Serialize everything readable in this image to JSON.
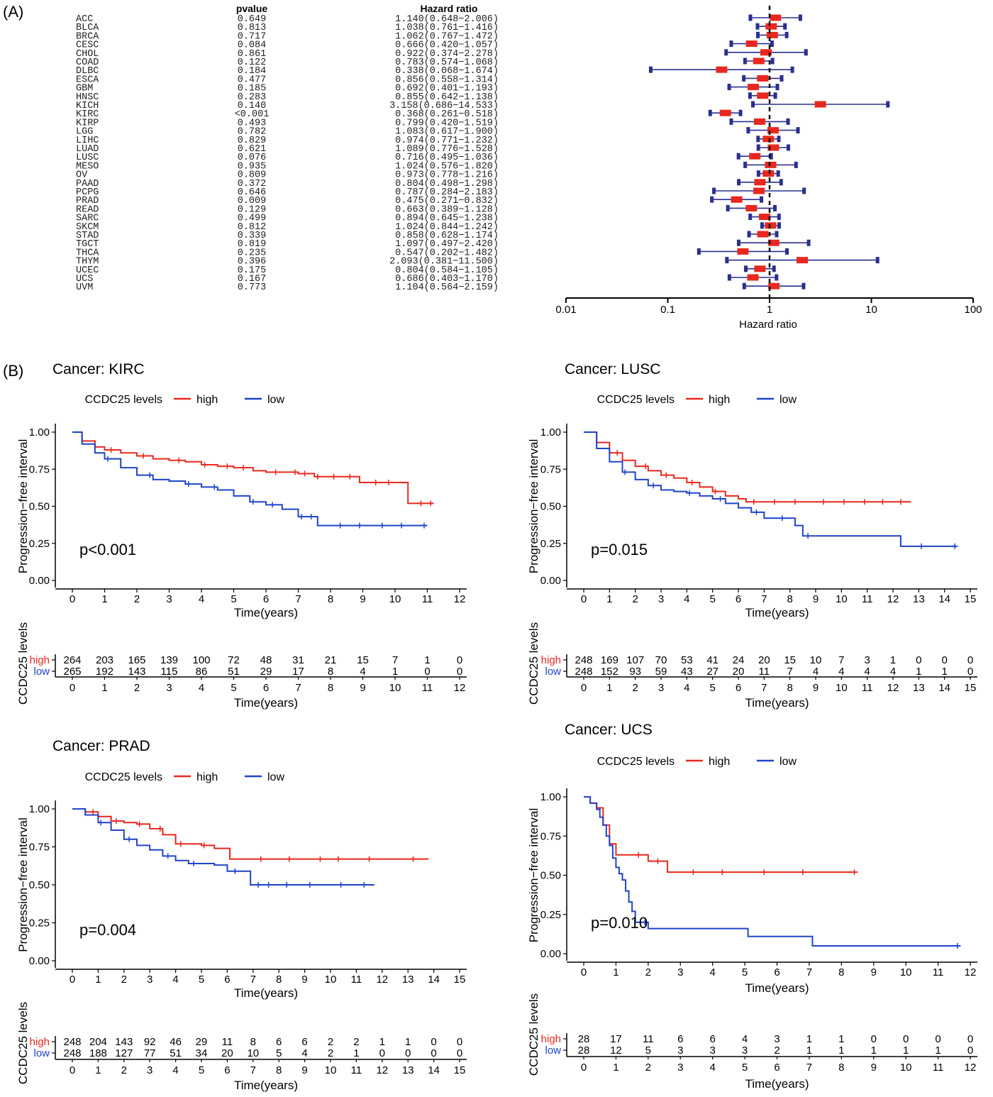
{
  "panel_labels": {
    "a": "(A)",
    "b": "(B)"
  },
  "forest": {
    "header_pvalue": "pvalue",
    "header_hr": "Hazard ratio",
    "xlabel": "Hazard ratio",
    "ticks": [
      "0.01",
      "0.1",
      "1",
      "10",
      "100"
    ],
    "rows": [
      {
        "name": "ACC",
        "p": "0.649",
        "hr_text": "1.140(0.648−2.006)",
        "hr": 1.14,
        "lo": 0.648,
        "hi": 2.006
      },
      {
        "name": "BLCA",
        "p": "0.813",
        "hr_text": "1.038(0.761−1.416)",
        "hr": 1.038,
        "lo": 0.761,
        "hi": 1.416
      },
      {
        "name": "BRCA",
        "p": "0.717",
        "hr_text": "1.062(0.767−1.472)",
        "hr": 1.062,
        "lo": 0.767,
        "hi": 1.472
      },
      {
        "name": "CESC",
        "p": "0.084",
        "hr_text": "0.666(0.420−1.057)",
        "hr": 0.666,
        "lo": 0.42,
        "hi": 1.057
      },
      {
        "name": "CHOL",
        "p": "0.861",
        "hr_text": "0.922(0.374−2.278)",
        "hr": 0.922,
        "lo": 0.374,
        "hi": 2.278
      },
      {
        "name": "COAD",
        "p": "0.122",
        "hr_text": "0.783(0.574−1.068)",
        "hr": 0.783,
        "lo": 0.574,
        "hi": 1.068
      },
      {
        "name": "DLBC",
        "p": "0.184",
        "hr_text": "0.338(0.068−1.674)",
        "hr": 0.338,
        "lo": 0.068,
        "hi": 1.674
      },
      {
        "name": "ESCA",
        "p": "0.477",
        "hr_text": "0.856(0.558−1.314)",
        "hr": 0.856,
        "lo": 0.558,
        "hi": 1.314
      },
      {
        "name": "GBM",
        "p": "0.185",
        "hr_text": "0.692(0.401−1.193)",
        "hr": 0.692,
        "lo": 0.401,
        "hi": 1.193
      },
      {
        "name": "HNSC",
        "p": "0.283",
        "hr_text": "0.855(0.642−1.138)",
        "hr": 0.855,
        "lo": 0.642,
        "hi": 1.138
      },
      {
        "name": "KICH",
        "p": "0.140",
        "hr_text": "3.158(0.686−14.533)",
        "hr": 3.158,
        "lo": 0.686,
        "hi": 14.533
      },
      {
        "name": "KIRC",
        "p": "<0.001",
        "hr_text": "0.368(0.261−0.518)",
        "hr": 0.368,
        "lo": 0.261,
        "hi": 0.518
      },
      {
        "name": "KIRP",
        "p": "0.493",
        "hr_text": "0.799(0.420−1.519)",
        "hr": 0.799,
        "lo": 0.42,
        "hi": 1.519
      },
      {
        "name": "LGG",
        "p": "0.782",
        "hr_text": "1.083(0.617−1.900)",
        "hr": 1.083,
        "lo": 0.617,
        "hi": 1.9
      },
      {
        "name": "LIHC",
        "p": "0.829",
        "hr_text": "0.974(0.771−1.232)",
        "hr": 0.974,
        "lo": 0.771,
        "hi": 1.232
      },
      {
        "name": "LUAD",
        "p": "0.621",
        "hr_text": "1.089(0.776−1.528)",
        "hr": 1.089,
        "lo": 0.776,
        "hi": 1.528
      },
      {
        "name": "LUSC",
        "p": "0.076",
        "hr_text": "0.716(0.495−1.036)",
        "hr": 0.716,
        "lo": 0.495,
        "hi": 1.036
      },
      {
        "name": "MESO",
        "p": "0.935",
        "hr_text": "1.024(0.576−1.820)",
        "hr": 1.024,
        "lo": 0.576,
        "hi": 1.82
      },
      {
        "name": "OV",
        "p": "0.809",
        "hr_text": "0.973(0.778−1.216)",
        "hr": 0.973,
        "lo": 0.778,
        "hi": 1.216
      },
      {
        "name": "PAAD",
        "p": "0.372",
        "hr_text": "0.804(0.498−1.298)",
        "hr": 0.804,
        "lo": 0.498,
        "hi": 1.298
      },
      {
        "name": "PCPG",
        "p": "0.646",
        "hr_text": "0.787(0.284−2.183)",
        "hr": 0.787,
        "lo": 0.284,
        "hi": 2.183
      },
      {
        "name": "PRAD",
        "p": "0.009",
        "hr_text": "0.475(0.271−0.832)",
        "hr": 0.475,
        "lo": 0.271,
        "hi": 0.832
      },
      {
        "name": "READ",
        "p": "0.129",
        "hr_text": "0.663(0.389−1.128)",
        "hr": 0.663,
        "lo": 0.389,
        "hi": 1.128
      },
      {
        "name": "SARC",
        "p": "0.499",
        "hr_text": "0.894(0.645−1.238)",
        "hr": 0.894,
        "lo": 0.645,
        "hi": 1.238
      },
      {
        "name": "SKCM",
        "p": "0.812",
        "hr_text": "1.024(0.844−1.242)",
        "hr": 1.024,
        "lo": 0.844,
        "hi": 1.242
      },
      {
        "name": "STAD",
        "p": "0.339",
        "hr_text": "0.858(0.628−1.174)",
        "hr": 0.858,
        "lo": 0.628,
        "hi": 1.174
      },
      {
        "name": "TGCT",
        "p": "0.819",
        "hr_text": "1.097(0.497−2.420)",
        "hr": 1.097,
        "lo": 0.497,
        "hi": 2.42
      },
      {
        "name": "THCA",
        "p": "0.235",
        "hr_text": "0.547(0.202−1.482)",
        "hr": 0.547,
        "lo": 0.202,
        "hi": 1.482
      },
      {
        "name": "THYM",
        "p": "0.396",
        "hr_text": "2.093(0.381−11.500)",
        "hr": 2.093,
        "lo": 0.381,
        "hi": 11.5
      },
      {
        "name": "UCEC",
        "p": "0.175",
        "hr_text": "0.804(0.584−1.105)",
        "hr": 0.804,
        "lo": 0.584,
        "hi": 1.105
      },
      {
        "name": "UCS",
        "p": "0.167",
        "hr_text": "0.686(0.403−1.170)",
        "hr": 0.686,
        "lo": 0.403,
        "hi": 1.17
      },
      {
        "name": "UVM",
        "p": "0.773",
        "hr_text": "1.104(0.564−2.159)",
        "hr": 1.104,
        "lo": 0.564,
        "hi": 2.159
      }
    ]
  },
  "chart_data": [
    {
      "type": "line",
      "title": "Cancer: KIRC",
      "legend_title": "CCDC25 levels",
      "legend": [
        "high",
        "low"
      ],
      "xlabel": "Time(years)",
      "ylabel": "Progression−free interval",
      "pvalue": "p<0.001",
      "xmax": 12,
      "yticks": [
        "0.00",
        "0.25",
        "0.50",
        "0.75",
        "1.00"
      ],
      "series": [
        {
          "name": "high",
          "color": "#e8281e",
          "x": [
            0,
            0.3,
            0.7,
            1,
            1.5,
            2,
            2.5,
            3,
            3.5,
            4,
            4.5,
            5,
            5.6,
            6,
            6.5,
            7,
            7.5,
            8,
            8.5,
            8.9,
            9.5,
            10,
            10.3,
            10.4,
            11.2
          ],
          "y": [
            1,
            0.94,
            0.9,
            0.88,
            0.86,
            0.84,
            0.82,
            0.81,
            0.8,
            0.78,
            0.77,
            0.76,
            0.74,
            0.73,
            0.73,
            0.72,
            0.7,
            0.7,
            0.7,
            0.66,
            0.66,
            0.66,
            0.66,
            0.52,
            0.52
          ],
          "censor_x": [
            1.2,
            2.2,
            3.3,
            4.1,
            4.8,
            5.3,
            6.3,
            6.9,
            7.2,
            7.6,
            8.1,
            8.6,
            9.4,
            9.8,
            10.8,
            11.1
          ]
        },
        {
          "name": "low",
          "color": "#1f44c8",
          "x": [
            0,
            0.3,
            0.7,
            1,
            1.5,
            2,
            2.5,
            3,
            3.5,
            4,
            4.5,
            5,
            5.5,
            6,
            6.5,
            7,
            7.5,
            7.6,
            8,
            8.5,
            9,
            9.5,
            10,
            11
          ],
          "y": [
            1,
            0.92,
            0.86,
            0.82,
            0.76,
            0.71,
            0.68,
            0.67,
            0.65,
            0.63,
            0.61,
            0.57,
            0.53,
            0.51,
            0.48,
            0.43,
            0.43,
            0.37,
            0.37,
            0.37,
            0.37,
            0.37,
            0.37,
            0.37
          ],
          "censor_x": [
            1.1,
            2.4,
            3.6,
            4.4,
            5.6,
            6.2,
            7.1,
            7.4,
            8.3,
            8.9,
            9.6,
            10.2,
            10.9
          ]
        }
      ],
      "risk_table": {
        "label": "CCDC25 levels",
        "rows": [
          {
            "name": "high",
            "color": "#e8281e",
            "values": [
              264,
              203,
              165,
              139,
              100,
              72,
              48,
              31,
              21,
              15,
              7,
              1,
              0
            ]
          },
          {
            "name": "low",
            "color": "#1f44c8",
            "values": [
              265,
              192,
              143,
              115,
              86,
              51,
              29,
              17,
              8,
              4,
              1,
              0,
              0
            ]
          }
        ]
      }
    },
    {
      "type": "line",
      "title": "Cancer: LUSC",
      "legend_title": "CCDC25 levels",
      "legend": [
        "high",
        "low"
      ],
      "xlabel": "Time(years)",
      "ylabel": "Progression−free interval",
      "pvalue": "p=0.015",
      "xmax": 15,
      "yticks": [
        "0.00",
        "0.25",
        "0.50",
        "0.75",
        "1.00"
      ],
      "series": [
        {
          "name": "high",
          "color": "#e8281e",
          "x": [
            0,
            0.5,
            1,
            1.5,
            2,
            2.5,
            3,
            3.5,
            4,
            4.5,
            5,
            5.5,
            6,
            6.3,
            7,
            8,
            9,
            10,
            11,
            12,
            12.7
          ],
          "y": [
            1,
            0.93,
            0.86,
            0.81,
            0.77,
            0.74,
            0.71,
            0.69,
            0.66,
            0.63,
            0.6,
            0.57,
            0.55,
            0.53,
            0.53,
            0.53,
            0.53,
            0.53,
            0.53,
            0.53,
            0.53
          ],
          "censor_x": [
            1.3,
            2.4,
            3.2,
            4.2,
            5.1,
            6.6,
            7.4,
            8.2,
            9.3,
            10.1,
            10.9,
            11.6,
            12.3
          ]
        },
        {
          "name": "low",
          "color": "#1f44c8",
          "x": [
            0,
            0.5,
            1,
            1.5,
            2,
            2.5,
            3,
            3.5,
            4,
            4.5,
            5,
            5.5,
            6,
            6.5,
            7,
            7.5,
            8.2,
            8.5,
            9,
            10,
            11,
            12,
            12.3,
            13,
            14.5
          ],
          "y": [
            1,
            0.89,
            0.8,
            0.73,
            0.68,
            0.64,
            0.61,
            0.6,
            0.59,
            0.57,
            0.55,
            0.52,
            0.49,
            0.46,
            0.42,
            0.42,
            0.37,
            0.3,
            0.3,
            0.3,
            0.3,
            0.3,
            0.23,
            0.23,
            0.23
          ],
          "censor_x": [
            1.6,
            2.7,
            4.1,
            5.3,
            6.7,
            7.7,
            8.7,
            13.1,
            14.4
          ]
        }
      ],
      "risk_table": {
        "label": "CCDC25 levels",
        "rows": [
          {
            "name": "high",
            "color": "#e8281e",
            "values": [
              248,
              169,
              107,
              70,
              53,
              41,
              24,
              20,
              15,
              10,
              7,
              3,
              1,
              0,
              0,
              0
            ]
          },
          {
            "name": "low",
            "color": "#1f44c8",
            "values": [
              248,
              152,
              93,
              59,
              43,
              27,
              20,
              11,
              7,
              4,
              4,
              4,
              4,
              1,
              1,
              0
            ]
          }
        ]
      }
    },
    {
      "type": "line",
      "title": "Cancer: PRAD",
      "legend_title": "CCDC25 levels",
      "legend": [
        "high",
        "low"
      ],
      "xlabel": "Time(years)",
      "ylabel": "Progression−free interval",
      "pvalue": "p=0.004",
      "xmax": 15,
      "yticks": [
        "0.00",
        "0.25",
        "0.50",
        "0.75",
        "1.00"
      ],
      "series": [
        {
          "name": "high",
          "color": "#e8281e",
          "x": [
            0,
            0.5,
            1,
            1.5,
            2,
            2.5,
            3,
            3.5,
            4,
            4.5,
            5,
            5.5,
            6,
            6.1,
            7,
            8,
            9,
            10,
            11,
            12,
            13,
            13.8
          ],
          "y": [
            1,
            0.98,
            0.95,
            0.92,
            0.91,
            0.9,
            0.87,
            0.83,
            0.77,
            0.77,
            0.76,
            0.74,
            0.74,
            0.67,
            0.67,
            0.67,
            0.67,
            0.67,
            0.67,
            0.67,
            0.67,
            0.67
          ],
          "censor_x": [
            0.8,
            1.7,
            2.6,
            3.4,
            4.2,
            5.1,
            7.3,
            8.4,
            9.6,
            10.3,
            11.5,
            13.2
          ]
        },
        {
          "name": "low",
          "color": "#1f44c8",
          "x": [
            0,
            0.5,
            1,
            1.5,
            2,
            2.5,
            3,
            3.5,
            4,
            4.5,
            5,
            5.5,
            6,
            6.5,
            6.8,
            6.9,
            8,
            9,
            10,
            11,
            11.7
          ],
          "y": [
            1,
            0.96,
            0.91,
            0.86,
            0.8,
            0.76,
            0.73,
            0.69,
            0.66,
            0.64,
            0.64,
            0.63,
            0.59,
            0.59,
            0.59,
            0.5,
            0.5,
            0.5,
            0.5,
            0.5,
            0.5
          ],
          "censor_x": [
            1.1,
            2.2,
            3.7,
            4.7,
            6.3,
            7.2,
            7.6,
            8.3,
            9.2,
            10.4,
            11.3
          ]
        }
      ],
      "risk_table": {
        "label": "CCDC25 levels",
        "rows": [
          {
            "name": "high",
            "color": "#e8281e",
            "values": [
              248,
              204,
              143,
              92,
              46,
              29,
              11,
              8,
              6,
              6,
              2,
              2,
              1,
              1,
              0,
              0
            ]
          },
          {
            "name": "low",
            "color": "#1f44c8",
            "values": [
              248,
              188,
              127,
              77,
              51,
              34,
              20,
              10,
              5,
              4,
              2,
              1,
              0,
              0,
              0,
              0
            ]
          }
        ]
      }
    },
    {
      "type": "line",
      "title": "Cancer: UCS",
      "legend_title": "CCDC25 levels",
      "legend": [
        "high",
        "low"
      ],
      "xlabel": "Time(years)",
      "ylabel": "Progression−free interval",
      "pvalue": "p=0.010",
      "xmax": 12,
      "yticks": [
        "0.00",
        "0.25",
        "0.50",
        "0.75",
        "1.00"
      ],
      "series": [
        {
          "name": "high",
          "color": "#e8281e",
          "x": [
            0,
            0.2,
            0.4,
            0.6,
            0.8,
            1.0,
            1.5,
            2.0,
            2.5,
            2.6,
            3,
            4,
            5,
            6,
            7,
            8,
            8.5
          ],
          "y": [
            1,
            0.96,
            0.93,
            0.82,
            0.7,
            0.63,
            0.63,
            0.59,
            0.59,
            0.52,
            0.52,
            0.52,
            0.52,
            0.52,
            0.52,
            0.52,
            0.52
          ],
          "censor_x": [
            1.7,
            2.3,
            3.4,
            4.3,
            5.6,
            6.8,
            8.4
          ]
        },
        {
          "name": "low",
          "color": "#1f44c8",
          "x": [
            0,
            0.2,
            0.4,
            0.5,
            0.6,
            0.7,
            0.8,
            0.9,
            1.0,
            1.1,
            1.2,
            1.3,
            1.4,
            1.5,
            1.6,
            1.8,
            2.0,
            3,
            4,
            5,
            5.1,
            6,
            7,
            7.1,
            9,
            10,
            11,
            11.7
          ],
          "y": [
            1,
            0.96,
            0.92,
            0.87,
            0.82,
            0.75,
            0.69,
            0.61,
            0.55,
            0.51,
            0.47,
            0.4,
            0.33,
            0.27,
            0.2,
            0.2,
            0.16,
            0.16,
            0.16,
            0.16,
            0.11,
            0.11,
            0.11,
            0.05,
            0.05,
            0.05,
            0.05,
            0.05
          ],
          "censor_x": [
            1.9,
            11.6
          ]
        }
      ],
      "risk_table": {
        "label": "CCDC25 levels",
        "rows": [
          {
            "name": "high",
            "color": "#e8281e",
            "values": [
              28,
              17,
              11,
              6,
              6,
              4,
              3,
              1,
              1,
              0,
              0,
              0,
              0
            ]
          },
          {
            "name": "low",
            "color": "#1f44c8",
            "values": [
              28,
              12,
              5,
              3,
              3,
              3,
              2,
              1,
              1,
              1,
              1,
              1,
              0
            ]
          }
        ]
      }
    }
  ]
}
